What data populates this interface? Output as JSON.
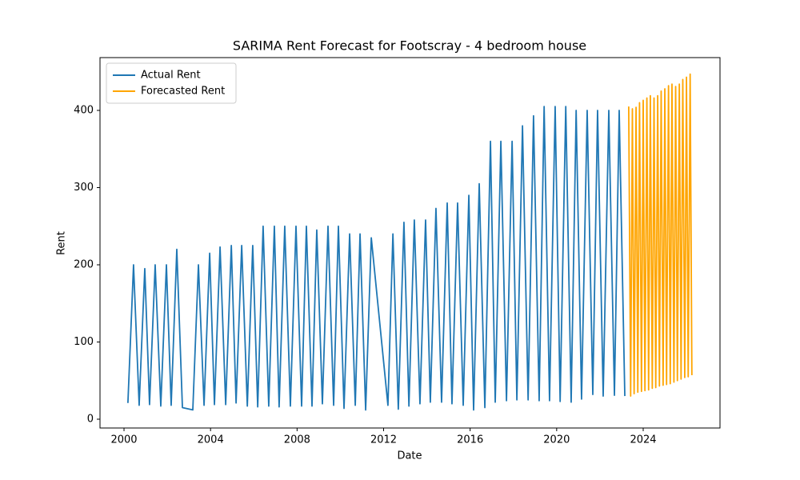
{
  "chart_data": {
    "type": "line",
    "title": "SARIMA Rent Forecast for Footscray - 4 bedroom house",
    "x_label": "Date",
    "y_label": "Rent",
    "xlim": [
      1998.89,
      2027.55
    ],
    "ylim": [
      -11.4,
      468.4
    ],
    "xticks": [
      2000,
      2004,
      2008,
      2012,
      2016,
      2020,
      2024
    ],
    "yticks": [
      0,
      100,
      200,
      300,
      400
    ],
    "grid": false,
    "legend": "upper left",
    "series": [
      {
        "name": "Actual Rent",
        "color": "#1f77b4",
        "x": [
          2000.18,
          2000.44,
          2000.7,
          2000.96,
          2001.18,
          2001.44,
          2001.7,
          2001.96,
          2002.18,
          2002.44,
          2002.7,
          2003.18,
          2003.44,
          2003.7,
          2003.96,
          2004.18,
          2004.44,
          2004.7,
          2004.96,
          2005.18,
          2005.44,
          2005.7,
          2005.95,
          2006.18,
          2006.43,
          2006.69,
          2006.95,
          2007.17,
          2007.43,
          2007.69,
          2007.95,
          2008.21,
          2008.43,
          2008.69,
          2008.91,
          2009.17,
          2009.43,
          2009.69,
          2009.91,
          2010.17,
          2010.43,
          2010.69,
          2010.91,
          2011.17,
          2011.43,
          2012.2,
          2012.43,
          2012.68,
          2012.94,
          2013.17,
          2013.42,
          2013.68,
          2013.94,
          2014.16,
          2014.42,
          2014.68,
          2014.94,
          2015.16,
          2015.42,
          2015.68,
          2015.94,
          2016.16,
          2016.42,
          2016.68,
          2016.94,
          2017.16,
          2017.42,
          2017.68,
          2017.94,
          2018.16,
          2018.42,
          2018.68,
          2018.93,
          2019.19,
          2019.42,
          2019.67,
          2019.93,
          2020.16,
          2020.42,
          2020.67,
          2020.9,
          2021.15,
          2021.41,
          2021.67,
          2021.89,
          2022.15,
          2022.41,
          2022.67,
          2022.89,
          2023.15
        ],
        "values": [
          21,
          200,
          18,
          195,
          19,
          200,
          17,
          200,
          18,
          220,
          15,
          12,
          200,
          18,
          215,
          19,
          223,
          19,
          225,
          21,
          225,
          17,
          225,
          16,
          250,
          17,
          250,
          16,
          250,
          17,
          250,
          17,
          250,
          17,
          245,
          20,
          250,
          18,
          250,
          14,
          240,
          18,
          240,
          12,
          235,
          18,
          240,
          13,
          255,
          17,
          258,
          20,
          258,
          22,
          273,
          22,
          280,
          20,
          280,
          18,
          290,
          12,
          305,
          15,
          360,
          22,
          360,
          24,
          360,
          25,
          380,
          25,
          393,
          24,
          405,
          24,
          405,
          23,
          405,
          22,
          400,
          26,
          400,
          32,
          400,
          30,
          400,
          31,
          400,
          30
        ]
      },
      {
        "name": "Forecasted Rent",
        "color": "#ffa500",
        "x": [
          2023.33,
          2023.42,
          2023.5,
          2023.58,
          2023.67,
          2023.75,
          2023.83,
          2023.92,
          2024.0,
          2024.08,
          2024.17,
          2024.25,
          2024.33,
          2024.42,
          2024.5,
          2024.58,
          2024.67,
          2024.75,
          2024.83,
          2024.92,
          2025.0,
          2025.08,
          2025.17,
          2025.25,
          2025.33,
          2025.42,
          2025.5,
          2025.58,
          2025.67,
          2025.75,
          2025.83,
          2025.92,
          2026.0,
          2026.08,
          2026.17,
          2026.25
        ],
        "values": [
          405,
          30,
          402,
          33,
          404,
          35,
          410,
          36,
          413,
          37,
          416,
          38,
          419,
          40,
          416,
          41,
          419,
          43,
          425,
          44,
          428,
          45,
          432,
          46,
          434,
          48,
          431,
          50,
          434,
          52,
          440,
          54,
          443,
          55,
          447,
          57
        ]
      }
    ]
  }
}
